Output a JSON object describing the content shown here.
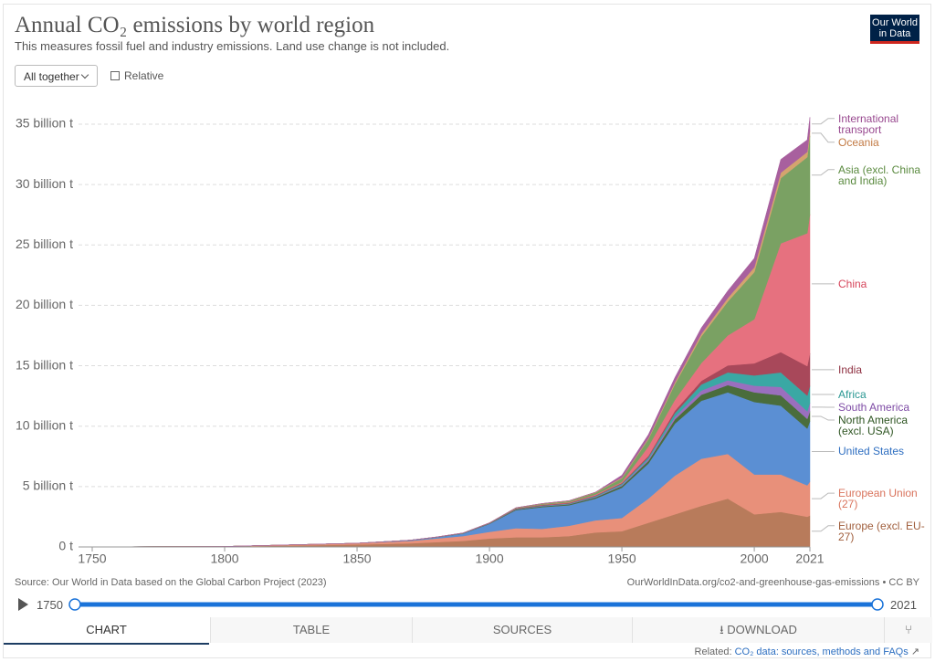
{
  "chart_data": {
    "type": "stacked-area",
    "title": "Annual CO₂ emissions by world region",
    "subtitle": "This measures fossil fuel and industry emissions. Land use change is not included.",
    "x": [
      1750,
      1800,
      1850,
      1870,
      1880,
      1890,
      1900,
      1910,
      1920,
      1930,
      1940,
      1950,
      1960,
      1970,
      1980,
      1990,
      2000,
      2010,
      2020,
      2021
    ],
    "series": [
      {
        "name": "Europe (excl. EU-27)",
        "color": "#b87b5b",
        "values": [
          0.01,
          0.03,
          0.2,
          0.3,
          0.4,
          0.5,
          0.7,
          0.8,
          0.8,
          0.9,
          1.2,
          1.3,
          2.0,
          2.7,
          3.4,
          4.0,
          2.7,
          2.9,
          2.5,
          2.6
        ]
      },
      {
        "name": "European Union (27)",
        "color": "#e8907a",
        "values": [
          0,
          0.01,
          0.1,
          0.2,
          0.3,
          0.4,
          0.55,
          0.75,
          0.7,
          0.85,
          1.0,
          1.1,
          2.0,
          3.2,
          3.9,
          3.7,
          3.3,
          3.1,
          2.6,
          2.8
        ]
      },
      {
        "name": "United States",
        "color": "#5b8fd3",
        "values": [
          0,
          0,
          0.01,
          0.05,
          0.1,
          0.2,
          0.66,
          1.5,
          1.8,
          1.7,
          1.8,
          2.5,
          2.9,
          4.3,
          4.8,
          5.1,
          6.0,
          5.7,
          4.7,
          5.0
        ]
      },
      {
        "name": "North America (excl. USA)",
        "color": "#4a6d3c",
        "values": [
          0,
          0,
          0,
          0.01,
          0.01,
          0.02,
          0.03,
          0.06,
          0.07,
          0.08,
          0.1,
          0.15,
          0.22,
          0.35,
          0.5,
          0.6,
          0.8,
          0.85,
          0.8,
          0.82
        ]
      },
      {
        "name": "South America",
        "color": "#9a6fbe",
        "values": [
          0,
          0,
          0,
          0,
          0,
          0.01,
          0.01,
          0.02,
          0.03,
          0.03,
          0.05,
          0.08,
          0.14,
          0.22,
          0.35,
          0.4,
          0.55,
          0.7,
          0.63,
          0.7
        ]
      },
      {
        "name": "Africa",
        "color": "#3aa8a4",
        "values": [
          0,
          0,
          0,
          0,
          0,
          0.01,
          0.01,
          0.02,
          0.03,
          0.04,
          0.06,
          0.1,
          0.15,
          0.3,
          0.5,
          0.65,
          0.85,
          1.2,
          1.3,
          1.4
        ]
      },
      {
        "name": "India",
        "color": "#a8485a",
        "values": [
          0,
          0,
          0,
          0,
          0.01,
          0.01,
          0.02,
          0.04,
          0.05,
          0.05,
          0.05,
          0.07,
          0.12,
          0.2,
          0.3,
          0.58,
          1.0,
          1.68,
          2.44,
          2.71
        ]
      },
      {
        "name": "China",
        "color": "#e6717f",
        "values": [
          0,
          0,
          0,
          0,
          0,
          0,
          0,
          0.01,
          0.03,
          0.05,
          0.08,
          0.08,
          0.78,
          0.9,
          1.47,
          2.48,
          3.65,
          9.0,
          11.0,
          11.5
        ]
      },
      {
        "name": "Asia (excl. China and India)",
        "color": "#7aa163",
        "values": [
          0,
          0,
          0,
          0,
          0,
          0,
          0.01,
          0.03,
          0.06,
          0.1,
          0.15,
          0.3,
          0.6,
          1.3,
          2.2,
          2.8,
          3.9,
          5.4,
          6.3,
          6.5
        ]
      },
      {
        "name": "Oceania",
        "color": "#d4a46e",
        "values": [
          0,
          0,
          0,
          0,
          0.01,
          0.01,
          0.01,
          0.02,
          0.03,
          0.03,
          0.04,
          0.06,
          0.09,
          0.15,
          0.22,
          0.3,
          0.4,
          0.45,
          0.43,
          0.44
        ]
      },
      {
        "name": "International transport",
        "color": "#a8609e",
        "values": [
          0,
          0,
          0,
          0,
          0,
          0,
          0,
          0,
          0,
          0,
          0,
          0.2,
          0.3,
          0.4,
          0.5,
          0.6,
          0.75,
          1.1,
          1.0,
          1.1
        ]
      }
    ],
    "label_colors": [
      "#a05e3c",
      "#d9735c",
      "#2f6fc1",
      "#2e5522",
      "#7e4ba5",
      "#2b9893",
      "#8e2f40",
      "#d6445a",
      "#5a8a3f",
      "#c27a44",
      "#98488f"
    ],
    "xlim": [
      1750,
      2021
    ],
    "xticks": [
      1750,
      1800,
      1850,
      1900,
      1950,
      2000,
      2021
    ],
    "ylim": [
      0,
      37
    ],
    "yticks": [
      {
        "value": 0,
        "label": "0 t"
      },
      {
        "value": 5,
        "label": "5 billion t"
      },
      {
        "value": 10,
        "label": "10 billion t"
      },
      {
        "value": 15,
        "label": "15 billion t"
      },
      {
        "value": 20,
        "label": "20 billion t"
      },
      {
        "value": 25,
        "label": "25 billion t"
      },
      {
        "value": 30,
        "label": "30 billion t"
      },
      {
        "value": 35,
        "label": "35 billion t"
      }
    ],
    "grid": true,
    "source": "Source: Our World in Data based on the Global Carbon Project (2023)",
    "url": "OurWorldInData.org/co2-and-greenhouse-gas-emissions • CC BY"
  },
  "ui": {
    "logo": "Our World in Data",
    "dropdown": "All together",
    "checkbox": "Relative",
    "timeline_start": "1750",
    "timeline_end": "2021",
    "tabs": [
      "CHART",
      "TABLE",
      "SOURCES",
      "DOWNLOAD"
    ],
    "related_prefix": "Related:",
    "related_link": "CO₂ data: sources, methods and FAQs"
  }
}
